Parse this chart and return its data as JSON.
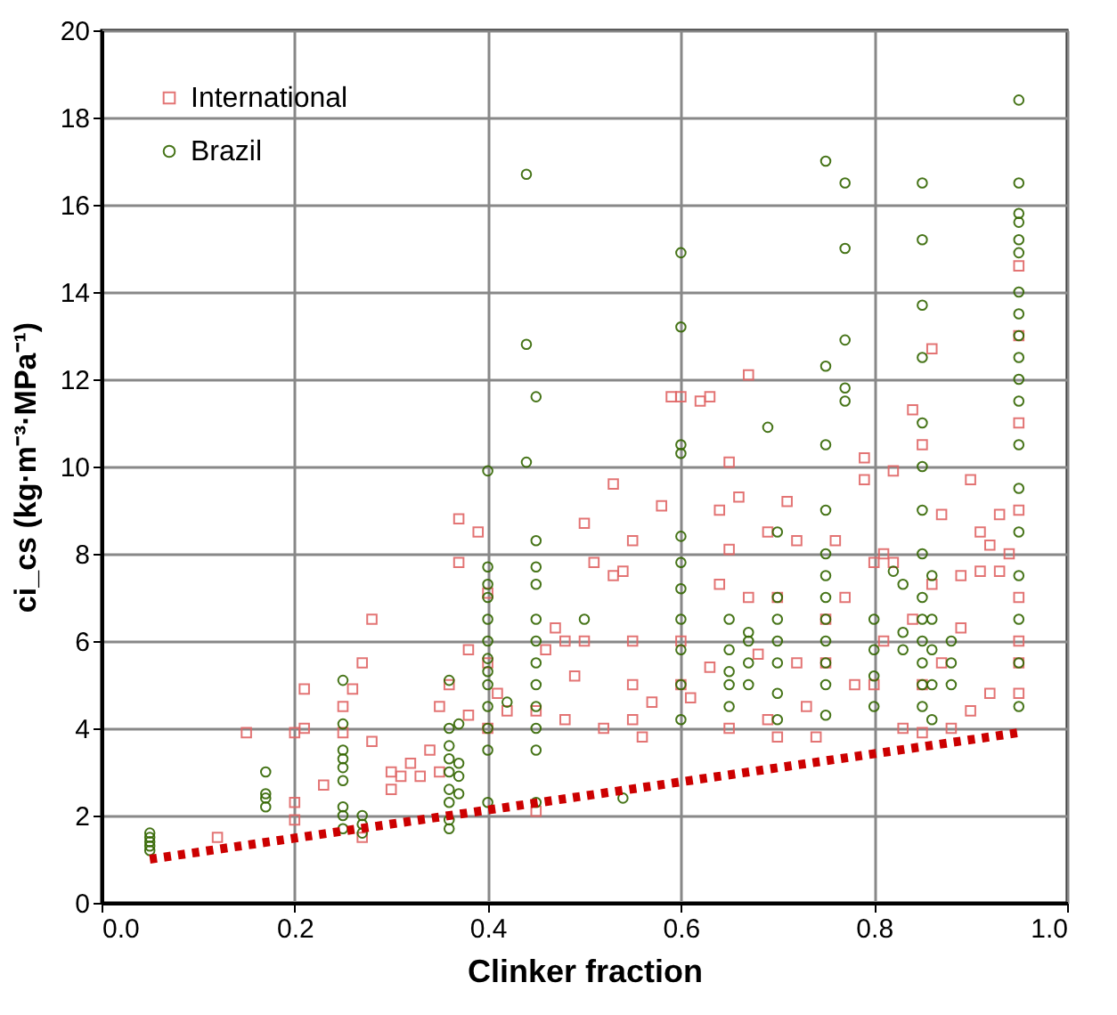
{
  "chart_data": {
    "type": "scatter",
    "xlabel": "Clinker fraction",
    "ylabel": "ci_cs (kg·m⁻³·MPa⁻¹)",
    "xlim": [
      0,
      1
    ],
    "xticks": [
      {
        "value": 0,
        "label": "0.0"
      },
      {
        "value": 0.2,
        "label": "0.2"
      },
      {
        "value": 0.4,
        "label": "0.4"
      },
      {
        "value": 0.6,
        "label": "0.6"
      },
      {
        "value": 0.8,
        "label": "0.8"
      },
      {
        "value": 1,
        "label": "1.0"
      }
    ],
    "ylim": [
      0,
      20
    ],
    "yticks": [
      0,
      2,
      4,
      6,
      8,
      10,
      12,
      14,
      16,
      18,
      20
    ],
    "grid": true,
    "legend": "top left",
    "series": [
      {
        "name": "International",
        "color": "#e06666",
        "marker": "square",
        "x": [
          0.12,
          0.15,
          0.2,
          0.21,
          0.21,
          0.2,
          0.2,
          0.23,
          0.25,
          0.25,
          0.26,
          0.27,
          0.27,
          0.28,
          0.28,
          0.3,
          0.3,
          0.31,
          0.32,
          0.33,
          0.34,
          0.35,
          0.35,
          0.36,
          0.37,
          0.37,
          0.38,
          0.38,
          0.39,
          0.4,
          0.4,
          0.4,
          0.41,
          0.42,
          0.45,
          0.45,
          0.46,
          0.47,
          0.48,
          0.48,
          0.49,
          0.5,
          0.5,
          0.51,
          0.52,
          0.53,
          0.53,
          0.54,
          0.55,
          0.55,
          0.55,
          0.55,
          0.56,
          0.57,
          0.58,
          0.59,
          0.6,
          0.6,
          0.6,
          0.61,
          0.62,
          0.63,
          0.63,
          0.64,
          0.64,
          0.65,
          0.65,
          0.65,
          0.66,
          0.67,
          0.67,
          0.68,
          0.69,
          0.69,
          0.7,
          0.7,
          0.71,
          0.72,
          0.72,
          0.73,
          0.74,
          0.75,
          0.75,
          0.76,
          0.77,
          0.78,
          0.79,
          0.79,
          0.8,
          0.8,
          0.81,
          0.81,
          0.82,
          0.82,
          0.83,
          0.84,
          0.84,
          0.85,
          0.85,
          0.85,
          0.86,
          0.86,
          0.87,
          0.87,
          0.88,
          0.89,
          0.89,
          0.9,
          0.9,
          0.91,
          0.91,
          0.92,
          0.92,
          0.93,
          0.93,
          0.94,
          0.95,
          0.95,
          0.95,
          0.95,
          0.95,
          0.95,
          0.95,
          0.95
        ],
        "values": [
          1.5,
          3.9,
          3.9,
          4.9,
          4.0,
          2.3,
          1.9,
          2.7,
          4.5,
          3.9,
          4.9,
          1.5,
          5.5,
          3.7,
          6.5,
          3.0,
          2.6,
          2.9,
          3.2,
          2.9,
          3.5,
          3.0,
          4.5,
          5.0,
          7.8,
          8.8,
          5.8,
          4.3,
          8.5,
          7.1,
          5.5,
          4.0,
          4.8,
          4.4,
          2.1,
          4.4,
          5.8,
          6.3,
          6.0,
          4.2,
          5.2,
          8.7,
          6.0,
          7.8,
          4.0,
          7.5,
          9.6,
          7.6,
          8.3,
          6.0,
          5.0,
          4.2,
          3.8,
          4.6,
          9.1,
          11.6,
          11.6,
          6.0,
          5.0,
          4.7,
          11.5,
          11.6,
          5.4,
          9.0,
          7.3,
          10.1,
          8.1,
          4.0,
          9.3,
          12.1,
          7.0,
          5.7,
          8.5,
          4.2,
          3.8,
          7.0,
          9.2,
          8.3,
          5.5,
          4.5,
          3.8,
          6.5,
          5.5,
          8.3,
          7.0,
          5.0,
          10.2,
          9.7,
          7.8,
          5.0,
          8.0,
          6.0,
          9.9,
          7.8,
          4.0,
          11.3,
          6.5,
          3.9,
          5.0,
          10.5,
          12.7,
          7.3,
          8.9,
          5.5,
          4.0,
          7.5,
          6.3,
          4.4,
          9.7,
          8.5,
          7.6,
          8.2,
          4.8,
          7.6,
          8.9,
          8.0,
          14.6,
          13.0,
          11.0,
          9.0,
          7.0,
          6.0,
          5.5,
          4.8
        ]
      },
      {
        "name": "Brazil",
        "color": "#336600",
        "marker": "circle",
        "x": [
          0.05,
          0.05,
          0.05,
          0.05,
          0.05,
          0.17,
          0.17,
          0.17,
          0.17,
          0.25,
          0.25,
          0.25,
          0.25,
          0.25,
          0.25,
          0.25,
          0.25,
          0.25,
          0.27,
          0.27,
          0.27,
          0.36,
          0.36,
          0.36,
          0.36,
          0.36,
          0.36,
          0.36,
          0.36,
          0.36,
          0.37,
          0.37,
          0.37,
          0.37,
          0.4,
          0.4,
          0.4,
          0.4,
          0.4,
          0.4,
          0.4,
          0.4,
          0.4,
          0.4,
          0.4,
          0.4,
          0.4,
          0.42,
          0.44,
          0.44,
          0.44,
          0.45,
          0.45,
          0.45,
          0.45,
          0.45,
          0.45,
          0.45,
          0.45,
          0.45,
          0.45,
          0.45,
          0.45,
          0.5,
          0.54,
          0.6,
          0.6,
          0.6,
          0.6,
          0.6,
          0.6,
          0.6,
          0.6,
          0.6,
          0.6,
          0.6,
          0.65,
          0.65,
          0.65,
          0.65,
          0.65,
          0.67,
          0.67,
          0.67,
          0.67,
          0.7,
          0.7,
          0.7,
          0.7,
          0.7,
          0.7,
          0.7,
          0.69,
          0.75,
          0.75,
          0.75,
          0.75,
          0.75,
          0.75,
          0.75,
          0.75,
          0.75,
          0.75,
          0.75,
          0.75,
          0.77,
          0.77,
          0.77,
          0.77,
          0.77,
          0.8,
          0.8,
          0.8,
          0.8,
          0.82,
          0.83,
          0.83,
          0.83,
          0.85,
          0.85,
          0.85,
          0.85,
          0.85,
          0.85,
          0.85,
          0.85,
          0.85,
          0.85,
          0.85,
          0.85,
          0.85,
          0.85,
          0.86,
          0.86,
          0.86,
          0.86,
          0.86,
          0.88,
          0.88,
          0.88,
          0.95,
          0.95,
          0.95,
          0.95,
          0.95,
          0.95,
          0.95,
          0.95,
          0.95,
          0.95,
          0.95,
          0.95,
          0.95,
          0.95,
          0.95,
          0.95,
          0.95,
          0.95,
          0.95
        ],
        "values": [
          1.2,
          1.3,
          1.4,
          1.5,
          1.6,
          2.2,
          2.4,
          2.5,
          3.0,
          1.7,
          2.0,
          2.2,
          2.8,
          3.1,
          3.3,
          3.5,
          4.1,
          5.1,
          1.6,
          1.8,
          2.0,
          1.7,
          1.9,
          2.3,
          2.6,
          3.0,
          3.3,
          3.6,
          4.0,
          5.1,
          2.5,
          2.9,
          3.2,
          4.1,
          2.3,
          3.5,
          4.0,
          4.5,
          5.0,
          5.3,
          5.6,
          6.0,
          6.5,
          7.0,
          7.3,
          7.7,
          9.9,
          4.6,
          10.1,
          12.8,
          16.7,
          2.3,
          3.5,
          4.0,
          4.5,
          5.0,
          5.5,
          6.0,
          6.5,
          7.3,
          7.7,
          8.3,
          11.6,
          6.5,
          2.4,
          4.2,
          5.0,
          5.8,
          6.5,
          7.2,
          7.8,
          8.4,
          10.3,
          10.5,
          13.2,
          14.9,
          4.5,
          5.0,
          5.3,
          5.8,
          6.5,
          5.0,
          5.5,
          6.0,
          6.2,
          4.2,
          4.8,
          5.5,
          6.0,
          6.5,
          7.0,
          8.5,
          10.9,
          4.3,
          5.0,
          5.5,
          6.0,
          6.5,
          7.0,
          7.5,
          8.0,
          9.0,
          10.5,
          12.3,
          17.0,
          11.5,
          11.8,
          12.9,
          15.0,
          16.5,
          4.5,
          5.2,
          5.8,
          6.5,
          7.6,
          5.8,
          6.2,
          7.3,
          4.5,
          5.0,
          5.5,
          6.0,
          6.5,
          7.0,
          8.0,
          9.0,
          10.0,
          11.0,
          12.5,
          13.7,
          15.2,
          16.5,
          4.2,
          5.0,
          5.8,
          6.5,
          7.5,
          5.0,
          5.5,
          6.0,
          4.5,
          5.5,
          6.5,
          7.5,
          8.5,
          9.5,
          10.5,
          11.5,
          12.0,
          12.5,
          13.0,
          13.5,
          14.0,
          14.9,
          15.2,
          15.6,
          15.8,
          16.5,
          18.4
        ]
      },
      {
        "type": "line",
        "color": "#cc0000",
        "line_style": "dotted",
        "x": [
          0.05,
          0.95
        ],
        "values": [
          1.0,
          3.9
        ]
      }
    ]
  }
}
